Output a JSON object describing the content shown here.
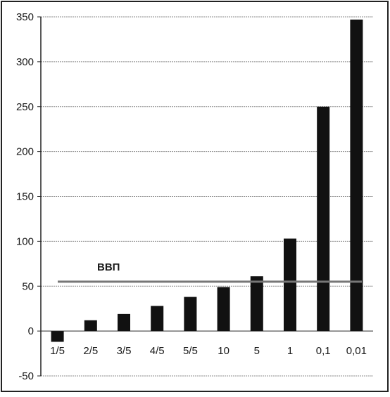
{
  "chart_data": {
    "type": "bar",
    "categories": [
      "1/5",
      "2/5",
      "3/5",
      "4/5",
      "5/5",
      "10",
      "5",
      "1",
      "0,1",
      "0,01"
    ],
    "values": [
      -12,
      12,
      19,
      28,
      38,
      49,
      61,
      103,
      250,
      347
    ],
    "ylim": [
      -50,
      350
    ],
    "yticks": [
      "-50",
      "0",
      "50",
      "100",
      "150",
      "200",
      "250",
      "300",
      "350"
    ],
    "grid": true,
    "bar_color": "#111111",
    "reference_line": {
      "label": "ВВП",
      "value": 55,
      "color": "#777777"
    }
  }
}
